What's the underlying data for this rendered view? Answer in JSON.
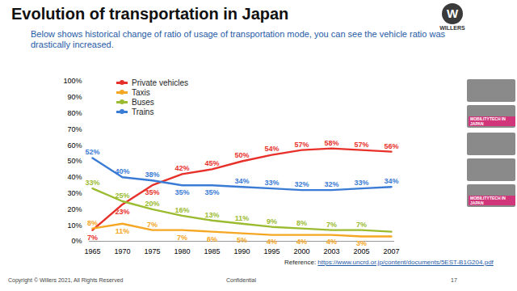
{
  "header": {
    "title": "Evolution of transportation in Japan",
    "subtitle": "Below shows historical change of ratio of usage of transportation mode, you can see the vehicle ratio was drastically increased.",
    "logo_mark": "W",
    "logo": "WILLERS"
  },
  "chart_data": {
    "type": "line",
    "categories": [
      "1965",
      "1970",
      "1975",
      "1980",
      "1985",
      "1990",
      "1995",
      "2000",
      "2003",
      "2005",
      "2007"
    ],
    "series": [
      {
        "name": "Private vehicles",
        "color": "#e8302a",
        "values": [
          7,
          23,
          35,
          42,
          45,
          50,
          54,
          57,
          58,
          57,
          56
        ],
        "value_labels": [
          "7%",
          "23%",
          "35%",
          "42%",
          "45%",
          "50%",
          "54%",
          "57%",
          "58%",
          "57%",
          "56%"
        ]
      },
      {
        "name": "Taxis",
        "color": "#f5a623",
        "values": [
          8,
          11,
          7,
          7,
          6,
          5,
          4,
          4,
          4,
          3,
          3
        ],
        "value_labels": [
          "8%",
          "11%",
          "7%",
          "7%",
          "6%",
          "5%",
          "4%",
          "4%",
          "4%",
          "3%",
          null
        ]
      },
      {
        "name": "Buses",
        "color": "#9bbb30",
        "values": [
          33,
          25,
          20,
          16,
          13,
          11,
          9,
          8,
          7,
          7,
          6
        ],
        "value_labels": [
          "33%",
          "25%",
          "20%",
          "16%",
          "13%",
          "11%",
          "9%",
          "8%",
          "7%",
          "7%",
          null
        ]
      },
      {
        "name": "Trains",
        "color": "#3a7bd5",
        "values": [
          52,
          40,
          38,
          35,
          35,
          34,
          33,
          32,
          32,
          33,
          34
        ],
        "value_labels": [
          "52%",
          "40%",
          "38%",
          "35%",
          "35%",
          "34%",
          "33%",
          "32%",
          "32%",
          "33%",
          "34%"
        ]
      }
    ],
    "ylim": [
      0,
      100
    ],
    "yticks": [
      {
        "value": 0,
        "label": "0%"
      },
      {
        "value": 10,
        "label": "10%"
      },
      {
        "value": 20,
        "label": "20%"
      },
      {
        "value": 30,
        "label": "30%"
      },
      {
        "value": 40,
        "label": "40%"
      },
      {
        "value": 50,
        "label": "50%"
      },
      {
        "value": 60,
        "label": "60%"
      },
      {
        "value": 70,
        "label": "70%"
      },
      {
        "value": 80,
        "label": "80%"
      },
      {
        "value": 90,
        "label": "90%"
      },
      {
        "value": 100,
        "label": "100%"
      }
    ],
    "grid": false,
    "legend": "top-left",
    "data_labels": true
  },
  "footer": {
    "reference_label": "Reference:",
    "reference_url": "https://www.uncrd.or.jp/content/documents/5EST-B1G204.pdf",
    "copyright": "Copyright © Willers 2021, All Rights Reserved",
    "confidential": "Confidential",
    "page": "17"
  },
  "sidebar": {
    "labels": [
      "MOBILITYTECH IN JAPAN",
      "MOBILITYTECH IN JAPAN"
    ]
  }
}
